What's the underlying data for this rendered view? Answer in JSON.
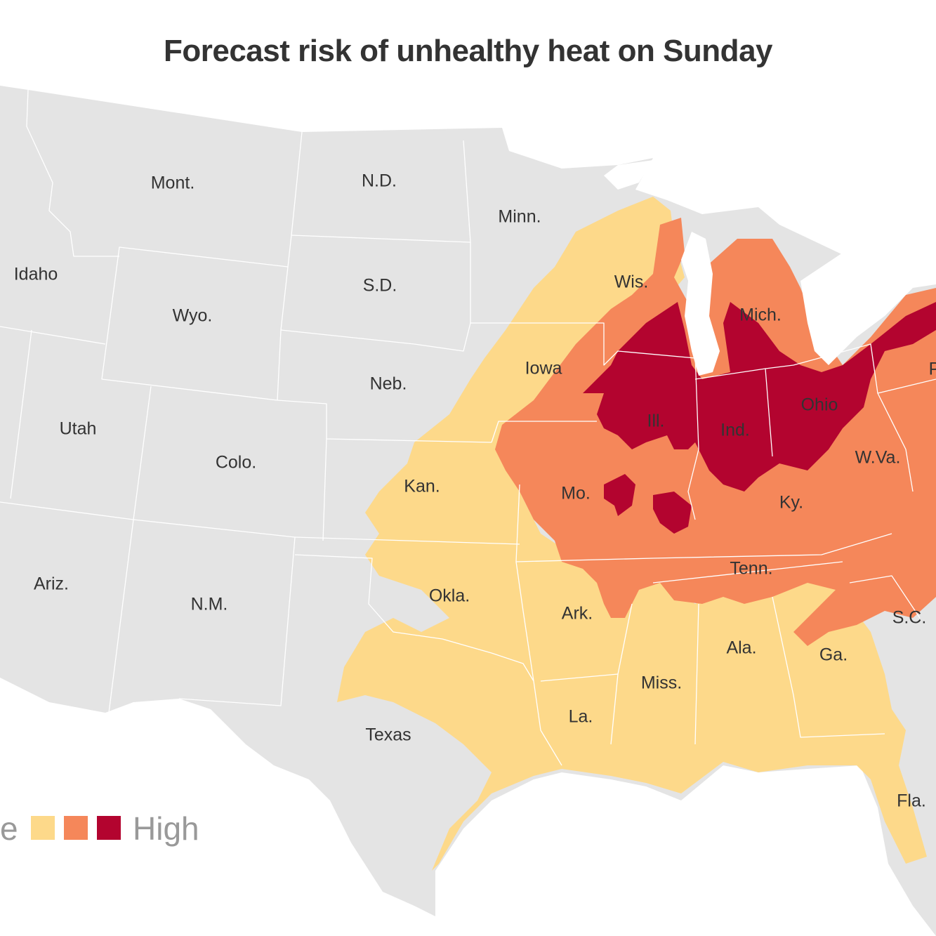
{
  "title": "Forecast risk of unhealthy heat on Sunday",
  "colors": {
    "background": "#ffffff",
    "land": "#e4e4e4",
    "state_border": "#ffffff",
    "lake": "#ffffff",
    "level_1": "#fdd98a",
    "level_2": "#f5875a",
    "level_3": "#b3042f"
  },
  "legend": {
    "left_text": "e",
    "right_text": "High",
    "levels": [
      "level_1",
      "level_2",
      "level_3"
    ]
  },
  "state_labels": {
    "mont": "Mont.",
    "nd": "N.D.",
    "minn": "Minn.",
    "idaho": "Idaho",
    "sd": "S.D.",
    "wyo": "Wyo.",
    "wis": "Wis.",
    "mich": "Mich.",
    "iowa": "Iowa",
    "neb": "Neb.",
    "utah": "Utah",
    "colo": "Colo.",
    "ill": "Ill.",
    "ind": "Ind.",
    "ohio": "Ohio",
    "pa": "P",
    "kan": "Kan.",
    "mo": "Mo.",
    "wva": "W.Va.",
    "ky": "Ky.",
    "ariz": "Ariz.",
    "nm": "N.M.",
    "okla": "Okla.",
    "tenn": "Tenn.",
    "ark": "Ark.",
    "sc": "S.C.",
    "ala": "Ala.",
    "ga": "Ga.",
    "miss": "Miss.",
    "la": "La.",
    "texas": "Texas",
    "fla": "Fla."
  }
}
